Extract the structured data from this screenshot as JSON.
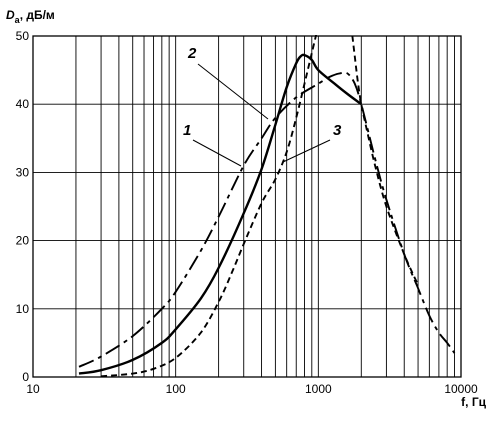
{
  "chart_data": {
    "type": "line",
    "x_scale": "log",
    "xlabel": "f, Гц",
    "ylabel_symbol": "D",
    "ylabel_subscript": "а",
    "ylabel_unit": ", дБ/м",
    "xlim": [
      10,
      10000
    ],
    "ylim": [
      0,
      50
    ],
    "x_ticks": [
      10,
      100,
      1000,
      10000
    ],
    "x_tick_labels": [
      "10",
      "100",
      "1000",
      "10000"
    ],
    "y_ticks": [
      0,
      10,
      20,
      30,
      40,
      50
    ],
    "y_tick_labels": [
      "0",
      "10",
      "20",
      "30",
      "40",
      "50"
    ],
    "grid": true,
    "series": [
      {
        "name": "1",
        "style": "solid",
        "x": [
          21,
          30,
          50,
          80,
          100,
          150,
          200,
          300,
          400,
          500,
          600,
          700,
          750,
          800,
          900,
          1000,
          1300,
          1600,
          2000
        ],
        "y": [
          0.5,
          1,
          2.5,
          5,
          7,
          11.5,
          16,
          24,
          30.5,
          37,
          42.5,
          46,
          47,
          47.2,
          46.5,
          45,
          43,
          41.5,
          40
        ]
      },
      {
        "name": "2",
        "style": "long-dash",
        "x": [
          21,
          30,
          50,
          80,
          100,
          150,
          200,
          300,
          400,
          500,
          700,
          1000,
          1200,
          1400,
          1600,
          1800,
          2000,
          2500,
          3000,
          4000,
          5000,
          6000,
          7000,
          8000,
          9000
        ],
        "y": [
          1.5,
          3,
          6,
          10,
          12.5,
          18.5,
          23.5,
          31,
          35,
          38,
          41,
          43,
          44,
          44.5,
          44.5,
          43,
          40,
          32,
          26,
          18,
          13,
          9,
          6.5,
          5,
          3.5
        ]
      },
      {
        "name": "3",
        "style": "short-dash",
        "x": [
          30,
          50,
          70,
          100,
          150,
          200,
          250,
          300,
          400,
          500,
          600,
          700,
          800,
          900,
          1000
        ],
        "y": [
          0.1,
          0.5,
          1.2,
          2.8,
          6.5,
          11,
          15.5,
          19.5,
          25.5,
          29,
          33,
          38,
          43,
          47.5,
          51.5
        ]
      },
      {
        "name": "3",
        "style": "short-dash",
        "x": [
          1700,
          1800,
          1900,
          2000,
          2200,
          2500,
          3000,
          4000,
          5000
        ],
        "y": [
          51.5,
          47,
          43,
          40,
          36,
          31,
          25,
          18,
          13.5
        ]
      }
    ],
    "annotations": [
      {
        "text": "1",
        "series": 0
      },
      {
        "text": "2",
        "series": 1
      },
      {
        "text": "3",
        "series": 2
      }
    ]
  }
}
